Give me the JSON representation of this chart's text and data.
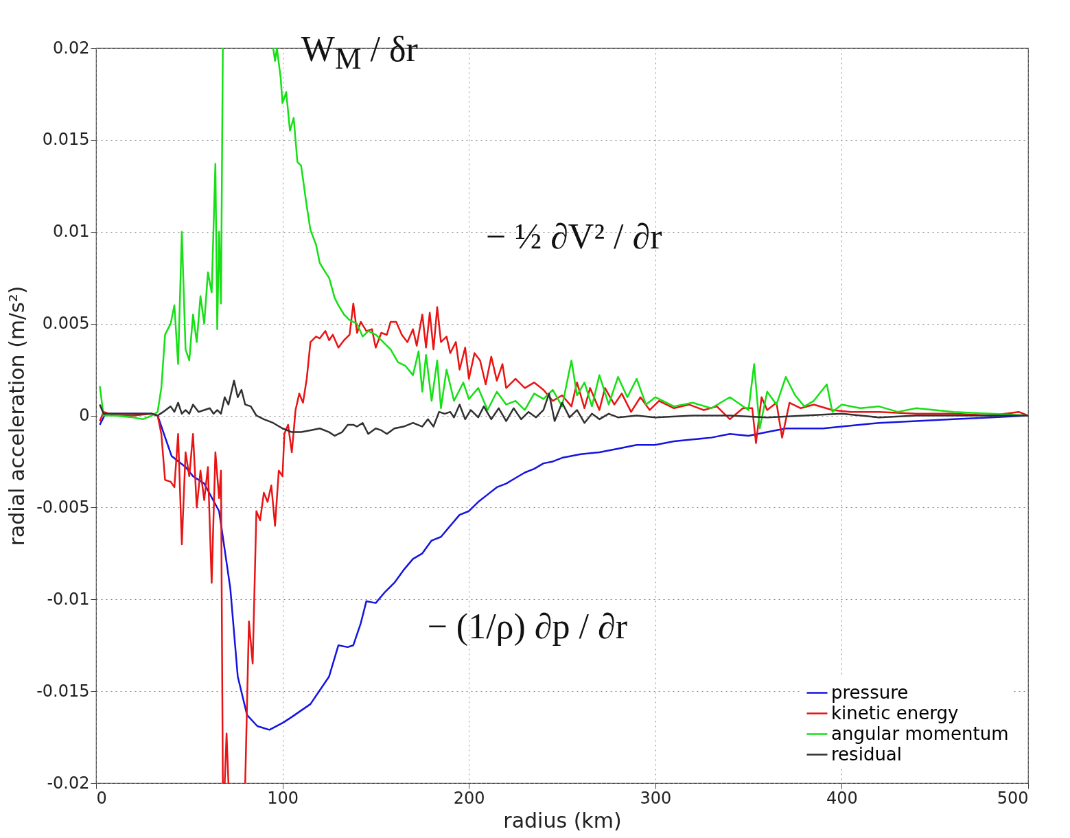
{
  "chart_data": {
    "type": "line",
    "xlabel": "radius (km)",
    "ylabel": "radial acceleration (m/s²)",
    "xlim": [
      0,
      500
    ],
    "xticks": [
      0,
      100,
      200,
      300,
      400,
      500
    ],
    "ylim": [
      -0.02,
      0.02
    ],
    "yticks": [
      -0.02,
      -0.015,
      -0.01,
      -0.005,
      0,
      0.005,
      0.01,
      0.015,
      0.02
    ],
    "grid": true,
    "legend": "bottom right",
    "annotations": [
      "W$_{M}$ / δr",
      "− ½ ∂V² / ∂r",
      "− (1/ρ) ∂p / ∂r"
    ],
    "series": [
      {
        "name": "pressure",
        "color": "#1414e0",
        "x": [
          2,
          5,
          10,
          20,
          30,
          33,
          40.5,
          48,
          52,
          58,
          66,
          72,
          76,
          81,
          86.5,
          93,
          100.5,
          105,
          115,
          125,
          130,
          135,
          138,
          142,
          145,
          150,
          155,
          160,
          165,
          170,
          175,
          180,
          185,
          190,
          195,
          200,
          205,
          210,
          215,
          220,
          225,
          230,
          235,
          240,
          245,
          250,
          260,
          270,
          280,
          290,
          300,
          310,
          320,
          330,
          340,
          350,
          360,
          370,
          380,
          390,
          400,
          420,
          440,
          460,
          480,
          500
        ],
        "values": [
          -0.0005,
          0.0001,
          0.0001,
          0.0001,
          0.0001,
          0,
          -0.0022,
          -0.0028,
          -0.0033,
          -0.0037,
          -0.0052,
          -0.0094,
          -0.0142,
          -0.0163,
          -0.0169,
          -0.0171,
          -0.0167,
          -0.0164,
          -0.0157,
          -0.0142,
          -0.0125,
          -0.0126,
          -0.0125,
          -0.0113,
          -0.0101,
          -0.0102,
          -0.0096,
          -0.0091,
          -0.0084,
          -0.0078,
          -0.0075,
          -0.0068,
          -0.0066,
          -0.006,
          -0.0054,
          -0.0052,
          -0.0047,
          -0.0043,
          -0.0039,
          -0.0037,
          -0.0034,
          -0.0031,
          -0.0029,
          -0.0026,
          -0.0025,
          -0.0023,
          -0.0021,
          -0.002,
          -0.0018,
          -0.0016,
          -0.0016,
          -0.0014,
          -0.0013,
          -0.0012,
          -0.001,
          -0.0011,
          -0.0009,
          -0.0007,
          -0.0007,
          -0.0007,
          -0.0006,
          -0.0004,
          -0.0003,
          -0.0002,
          -0.0001,
          0
        ]
      },
      {
        "name": "kinetic energy",
        "color": "#e81414",
        "x": [
          2,
          4,
          10,
          20,
          30,
          33,
          35,
          37,
          40,
          42,
          44,
          46,
          48,
          50,
          52,
          54,
          56,
          58,
          60,
          62,
          64,
          66,
          67,
          68,
          69,
          70,
          71,
          75,
          80,
          82,
          84,
          86,
          88,
          90,
          92,
          94,
          96,
          98,
          100,
          101,
          103,
          105,
          107,
          109,
          111,
          113,
          115,
          118,
          120,
          123,
          125,
          127,
          130,
          133,
          136,
          138,
          140,
          142,
          145,
          148,
          150,
          153,
          156,
          158,
          161,
          164,
          167,
          170,
          172,
          175,
          177,
          179,
          181,
          183,
          185,
          188,
          190,
          193,
          195,
          198,
          200,
          203,
          206,
          209,
          212,
          215,
          218,
          220,
          225,
          230,
          235,
          240,
          245,
          250,
          255,
          258,
          262,
          265,
          270,
          273,
          278,
          282,
          287,
          292,
          297,
          302,
          310,
          318,
          326,
          333,
          340,
          347,
          352,
          354,
          357,
          360,
          365,
          368,
          372,
          378,
          385,
          395,
          405,
          420,
          440,
          460,
          480,
          495,
          500
        ],
        "values": [
          -0.0003,
          0.0002,
          0,
          0,
          0.0001,
          0,
          -0.001,
          -0.0035,
          -0.0036,
          -0.0039,
          -0.001,
          -0.007,
          -0.002,
          -0.0033,
          -0.001,
          -0.005,
          -0.003,
          -0.0046,
          -0.0028,
          -0.0091,
          -0.002,
          -0.0045,
          -0.003,
          -0.02,
          -0.02,
          -0.0173,
          -0.02,
          null,
          -0.02,
          -0.0112,
          -0.0135,
          -0.0052,
          -0.0057,
          -0.0042,
          -0.0047,
          -0.0038,
          -0.006,
          -0.003,
          -0.0033,
          -0.001,
          -0.0005,
          -0.002,
          0.0003,
          0.0012,
          0.0007,
          0.002,
          0.004,
          0.0043,
          0.0042,
          0.0046,
          0.0041,
          0.0044,
          0.0037,
          0.0041,
          0.0044,
          0.0061,
          0.0045,
          0.0051,
          0.0046,
          0.0047,
          0.0037,
          0.0045,
          0.0044,
          0.0051,
          0.0051,
          0.0044,
          0.004,
          0.0047,
          0.0038,
          0.0055,
          0.0037,
          0.0056,
          0.0036,
          0.0059,
          0.004,
          0.0043,
          0.0034,
          0.004,
          0.0025,
          0.0037,
          0.002,
          0.0034,
          0.003,
          0.0017,
          0.0032,
          0.0019,
          0.0028,
          0.0015,
          0.002,
          0.0015,
          0.0018,
          0.0014,
          0.0008,
          0.0011,
          0.0005,
          0.0018,
          0.0004,
          0.0015,
          0.0003,
          0.0015,
          0.0006,
          0.0012,
          0.0002,
          0.001,
          0.0003,
          0.0008,
          0.0004,
          0.0006,
          0.0003,
          0.0005,
          -0.0002,
          0.0004,
          0.0004,
          -0.0015,
          0.001,
          0.0003,
          0.0007,
          -0.0012,
          0.0007,
          0.0004,
          0.0006,
          0.0003,
          0.0002,
          0.0002,
          0.0001,
          0.0001,
          0,
          0.0002,
          0
        ]
      },
      {
        "name": "angular momentum",
        "color": "#14e014",
        "x": [
          2,
          4,
          10,
          20,
          25,
          30,
          33,
          35,
          37,
          40,
          42,
          44,
          46,
          48,
          50,
          52,
          54,
          56,
          58,
          60,
          62,
          64,
          65,
          66,
          67,
          68,
          80,
          95,
          96,
          97,
          99,
          100,
          102,
          104,
          106,
          108,
          110,
          113,
          115,
          118,
          120,
          123,
          125,
          128,
          130,
          133,
          136,
          140,
          143,
          146,
          150,
          154,
          158,
          162,
          166,
          170,
          173,
          175,
          177,
          180,
          183,
          185,
          188,
          192,
          197,
          200,
          205,
          210,
          215,
          220,
          225,
          230,
          235,
          240,
          245,
          250,
          255,
          258,
          262,
          266,
          270,
          275,
          280,
          285,
          290,
          295,
          300,
          310,
          320,
          330,
          340,
          350,
          353,
          356,
          360,
          365,
          370,
          375,
          380,
          385,
          392,
          395,
          400,
          410,
          420,
          430,
          440,
          460,
          480,
          500
        ],
        "values": [
          0.0016,
          0,
          0,
          -0.0001,
          -0.0002,
          0,
          0.0002,
          0.0015,
          0.0044,
          0.005,
          0.006,
          0.0028,
          0.01,
          0.0036,
          0.003,
          0.0055,
          0.004,
          0.0065,
          0.005,
          0.0078,
          0.0067,
          0.0137,
          0.0047,
          0.01,
          0.0061,
          0.02,
          null,
          0.02,
          0.0193,
          0.02,
          0.0184,
          0.017,
          0.0176,
          0.0155,
          0.0162,
          0.0138,
          0.0136,
          0.0114,
          0.0101,
          0.0093,
          0.0083,
          0.0078,
          0.0075,
          0.0064,
          0.006,
          0.0055,
          0.0052,
          0.005,
          0.0043,
          0.0046,
          0.0044,
          0.004,
          0.0036,
          0.0029,
          0.0027,
          0.0022,
          0.0035,
          0.0013,
          0.0033,
          0.0008,
          0.003,
          0.0004,
          0.0025,
          0.0008,
          0.0018,
          0.0009,
          0.0015,
          0.0003,
          0.0013,
          0.0006,
          0.0008,
          0.0003,
          0.0012,
          0.0009,
          0.0014,
          0.0005,
          0.003,
          0.0011,
          0.0018,
          0.0005,
          0.0022,
          0.0006,
          0.0021,
          0.001,
          0.002,
          0.0006,
          0.001,
          0.0005,
          0.0007,
          0.0004,
          0.001,
          0.0003,
          0.0028,
          -0.0007,
          0.0013,
          0.0006,
          0.0021,
          0.0011,
          0.0005,
          0.0008,
          0.0017,
          0.0002,
          0.0006,
          0.0004,
          0.0005,
          0.0002,
          0.0004,
          0.0002,
          0.0001,
          0
        ]
      },
      {
        "name": "residual",
        "color": "#303030",
        "x": [
          2,
          4,
          10,
          20,
          30,
          33,
          36,
          40,
          42,
          44,
          46,
          48,
          50,
          52,
          55,
          58,
          61,
          63,
          65,
          67,
          69,
          71,
          74,
          76,
          78,
          80,
          83,
          86,
          90,
          95,
          100,
          105,
          110,
          115,
          120,
          125,
          128,
          132,
          135,
          138,
          140,
          143,
          146,
          150,
          153,
          156,
          160,
          165,
          170,
          175,
          178,
          181,
          184,
          187,
          190,
          192,
          195,
          198,
          201,
          205,
          208,
          212,
          216,
          220,
          224,
          228,
          232,
          236,
          240,
          243,
          246,
          250,
          254,
          258,
          262,
          266,
          270,
          275,
          280,
          290,
          300,
          320,
          340,
          360,
          380,
          400,
          420,
          440,
          460,
          500
        ],
        "values": [
          0.0006,
          0.0001,
          0.0001,
          0.0001,
          0.0001,
          0,
          0.0002,
          0.0005,
          0.0002,
          0.0007,
          0.0001,
          0.0003,
          0.0001,
          0.0006,
          0.0002,
          0.0003,
          0.0004,
          0.0001,
          0.0003,
          0.0001,
          0.001,
          0.0006,
          0.0019,
          0.001,
          0.0014,
          0.0006,
          0.0005,
          0,
          -0.0002,
          -0.0004,
          -0.0007,
          -0.0009,
          -0.0009,
          -0.0008,
          -0.0007,
          -0.0009,
          -0.0011,
          -0.0009,
          -0.0005,
          -0.0005,
          -0.0006,
          -0.0004,
          -0.001,
          -0.0007,
          -0.0008,
          -0.001,
          -0.0007,
          -0.0006,
          -0.0004,
          -0.0006,
          -0.0002,
          -0.0006,
          0.0002,
          0.0001,
          0.0002,
          -0.0001,
          0.0006,
          -0.0002,
          0.0003,
          -0.0001,
          0.0005,
          -0.0002,
          0.0004,
          -0.0003,
          0.0004,
          -0.0002,
          0.0002,
          -0.0001,
          0.0003,
          0.0012,
          -0.0003,
          0.0007,
          -0.0001,
          0.0003,
          -0.0004,
          0.0001,
          -0.0002,
          0.0001,
          -0.0001,
          0,
          -0.0001,
          0,
          0,
          -0.0001,
          0,
          0.0001,
          -0.0001,
          0,
          0,
          0
        ]
      }
    ]
  }
}
